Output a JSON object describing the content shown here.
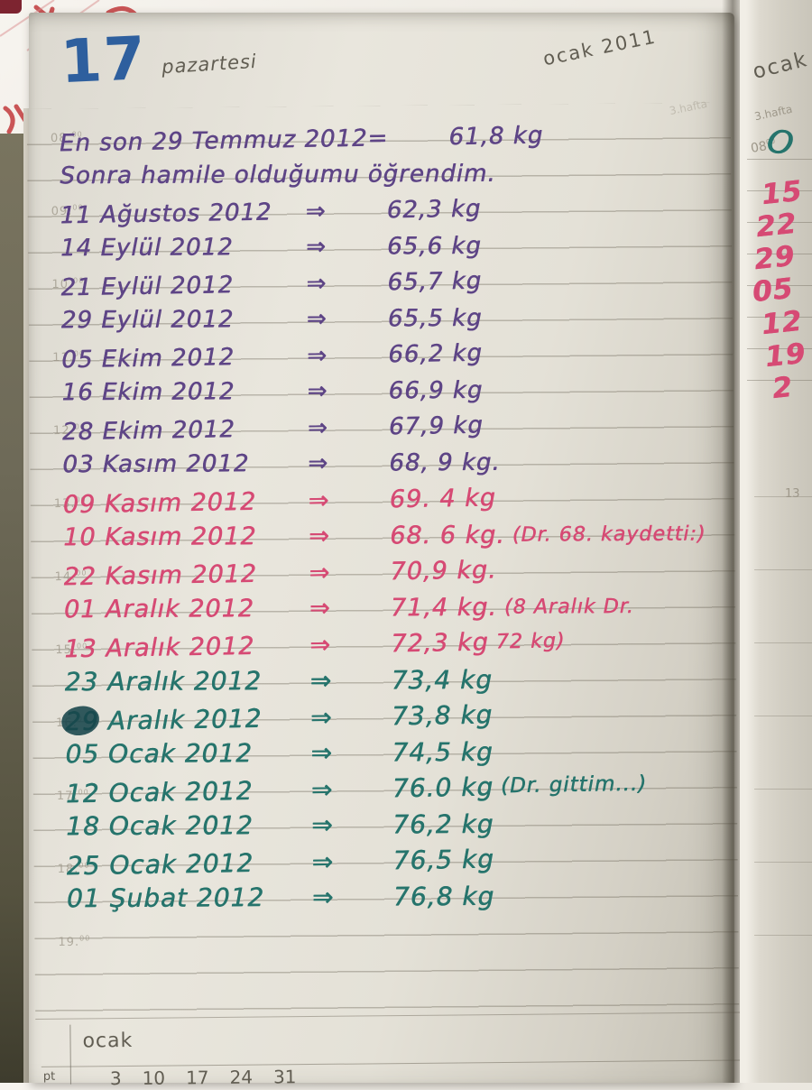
{
  "colors": {
    "ink_purple": "#5e4586",
    "ink_pink": "#d64a74",
    "ink_teal": "#26746c",
    "day_blue": "#2e5f9e",
    "print_gray": "#615d52",
    "print_faint": "#9d9789",
    "doodle_red": "#c23a3c"
  },
  "header": {
    "day_number": "17",
    "day_name": "pazartesi",
    "month_year": "ocak 2011",
    "week_label": "3.hafta"
  },
  "hour_markers": [
    "08",
    "09",
    "10",
    "11",
    "12",
    "13",
    "14",
    "15",
    "16",
    "17",
    "18",
    "19"
  ],
  "hour_sup": "00",
  "entries": [
    {
      "date": "En son 29 Temmuz 2012",
      "sep": "=",
      "value": "61,8 kg",
      "note": "",
      "ink": "purple"
    },
    {
      "date": "Sonra hamile olduğumu öğrendim.",
      "sep": "",
      "value": "",
      "note": "",
      "ink": "purple"
    },
    {
      "date": "11 Ağustos 2012",
      "sep": "⇒",
      "value": "62,3 kg",
      "note": "",
      "ink": "purple"
    },
    {
      "date": "14 Eylül 2012",
      "sep": "⇒",
      "value": "65,6 kg",
      "note": "",
      "ink": "purple"
    },
    {
      "date": "21 Eylül 2012",
      "sep": "⇒",
      "value": "65,7 kg",
      "note": "",
      "ink": "purple"
    },
    {
      "date": "29 Eylül 2012",
      "sep": "⇒",
      "value": "65,5 kg",
      "note": "",
      "ink": "purple"
    },
    {
      "date": "05 Ekim 2012",
      "sep": "⇒",
      "value": "66,2 kg",
      "note": "",
      "ink": "purple"
    },
    {
      "date": "16 Ekim 2012",
      "sep": "⇒",
      "value": "66,9 kg",
      "note": "",
      "ink": "purple"
    },
    {
      "date": "28 Ekim 2012",
      "sep": "⇒",
      "value": "67,9 kg",
      "note": "",
      "ink": "purple"
    },
    {
      "date": "03 Kasım 2012",
      "sep": "⇒",
      "value": "68, 9 kg.",
      "note": "",
      "ink": "purple"
    },
    {
      "date": "09 Kasım 2012",
      "sep": "⇒",
      "value": "69. 4 kg",
      "note": "",
      "ink": "pink"
    },
    {
      "date": "10 Kasım 2012",
      "sep": "⇒",
      "value": "68. 6 kg.",
      "note": "(Dr. 68. kaydetti:)",
      "ink": "pink"
    },
    {
      "date": "22 Kasım 2012",
      "sep": "⇒",
      "value": "70,9 kg.",
      "note": "",
      "ink": "pink"
    },
    {
      "date": "01 Aralık 2012",
      "sep": "⇒",
      "value": "71,4 kg.",
      "note": "(8 Aralık Dr.",
      "ink": "pink"
    },
    {
      "date": "13 Aralık 2012",
      "sep": "⇒",
      "value": "72,3 kg",
      "note": "72 kg)",
      "ink": "pink"
    },
    {
      "date": "23 Aralık 2012",
      "sep": "⇒",
      "value": "73,4 kg",
      "note": "",
      "ink": "teal"
    },
    {
      "date": "29 Aralık 2012",
      "sep": "⇒",
      "value": "73,8 kg",
      "note": "",
      "ink": "teal",
      "scribbled": true
    },
    {
      "date": "05 Ocak 2012",
      "sep": "⇒",
      "value": "74,5 kg",
      "note": "",
      "ink": "teal"
    },
    {
      "date": "12 Ocak 2012",
      "sep": "⇒",
      "value": "76.0 kg",
      "note": "(Dr. gittim...)",
      "ink": "teal"
    },
    {
      "date": "18 Ocak 2012",
      "sep": "⇒",
      "value": "76,2 kg",
      "note": "",
      "ink": "teal"
    },
    {
      "date": "25 Ocak 2012",
      "sep": "⇒",
      "value": "76,5 kg",
      "note": "",
      "ink": "teal"
    },
    {
      "date": "01 Şubat 2012",
      "sep": "⇒",
      "value": "76,8 kg",
      "note": "",
      "ink": "teal"
    }
  ],
  "mini_calendar": {
    "month": "ocak",
    "row_label": "pt",
    "days": [
      "3",
      "10",
      "17",
      "24",
      "31"
    ]
  },
  "next_page": {
    "month": "ocak",
    "week_label": "3.hafta",
    "hour": "08",
    "scribble": "O",
    "handwritten_numbers": [
      "15",
      "22",
      "29",
      "05",
      "12",
      "19",
      "2"
    ],
    "printed_number": "13"
  }
}
